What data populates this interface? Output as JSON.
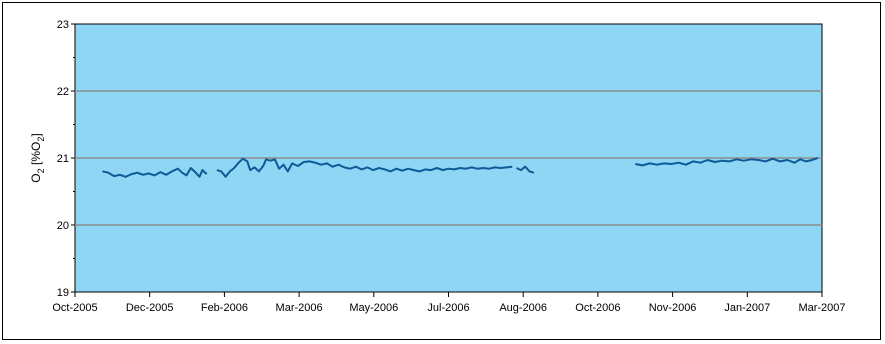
{
  "chart_data": {
    "type": "line",
    "title": "",
    "xlabel": "",
    "ylabel": {
      "main": "O",
      "sub1": "2",
      "mid": " [%O",
      "sub2": "2",
      "end": "]"
    },
    "ylim": [
      19,
      23
    ],
    "yticks": [
      "19",
      "20",
      "21",
      "22",
      "23"
    ],
    "xlim": [
      "2005-10-01",
      "2007-03-01"
    ],
    "xtick_labels": [
      "Oct-2005",
      "Dec-2005",
      "Feb-2006",
      "Mar-2006",
      "May-2006",
      "Jul-2006",
      "Aug-2006",
      "Oct-2006",
      "Nov-2006",
      "Jan-2007",
      "Mar-2007"
    ],
    "grid": true,
    "legend": "none",
    "plot_background": "#8fd6f4",
    "gridline_color": "#8c8c8c",
    "line_color": "#0d5a96",
    "series": [
      {
        "segments": [
          [
            [
              "2005-10-20",
              20.8
            ],
            [
              "2005-10-24",
              20.78
            ],
            [
              "2005-10-28",
              20.73
            ],
            [
              "2005-11-01",
              20.75
            ],
            [
              "2005-11-05",
              20.72
            ],
            [
              "2005-11-09",
              20.76
            ],
            [
              "2005-11-13",
              20.78
            ],
            [
              "2005-11-17",
              20.75
            ],
            [
              "2005-11-21",
              20.77
            ],
            [
              "2005-11-25",
              20.74
            ],
            [
              "2005-11-29",
              20.79
            ],
            [
              "2005-12-03",
              20.75
            ],
            [
              "2005-12-07",
              20.8
            ],
            [
              "2005-12-11",
              20.84
            ],
            [
              "2005-12-14",
              20.78
            ],
            [
              "2005-12-17",
              20.74
            ],
            [
              "2005-12-20",
              20.85
            ],
            [
              "2005-12-23",
              20.79
            ],
            [
              "2005-12-26",
              20.72
            ],
            [
              "2005-12-28",
              20.82
            ],
            [
              "2005-12-31",
              20.76
            ]
          ],
          [
            [
              "2006-01-07",
              20.82
            ],
            [
              "2006-01-10",
              20.8
            ],
            [
              "2006-01-13",
              20.72
            ],
            [
              "2006-01-16",
              20.8
            ],
            [
              "2006-01-19",
              20.85
            ],
            [
              "2006-01-22",
              20.93
            ],
            [
              "2006-01-25",
              20.99
            ],
            [
              "2006-01-28",
              20.95
            ],
            [
              "2006-01-30",
              20.82
            ],
            [
              "2006-02-02",
              20.86
            ],
            [
              "2006-02-05",
              20.8
            ],
            [
              "2006-02-08",
              20.88
            ],
            [
              "2006-02-10",
              20.98
            ],
            [
              "2006-02-13",
              20.96
            ],
            [
              "2006-02-16",
              20.98
            ],
            [
              "2006-02-19",
              20.84
            ],
            [
              "2006-02-22",
              20.9
            ],
            [
              "2006-02-25",
              20.8
            ],
            [
              "2006-02-28",
              20.92
            ],
            [
              "2006-03-04",
              20.88
            ],
            [
              "2006-03-08",
              20.94
            ],
            [
              "2006-03-12",
              20.95
            ],
            [
              "2006-03-16",
              20.93
            ],
            [
              "2006-03-20",
              20.9
            ],
            [
              "2006-03-24",
              20.92
            ],
            [
              "2006-03-28",
              20.87
            ],
            [
              "2006-04-01",
              20.9
            ],
            [
              "2006-04-05",
              20.86
            ],
            [
              "2006-04-09",
              20.84
            ],
            [
              "2006-04-13",
              20.87
            ],
            [
              "2006-04-17",
              20.83
            ],
            [
              "2006-04-21",
              20.86
            ],
            [
              "2006-04-25",
              20.82
            ],
            [
              "2006-04-29",
              20.85
            ],
            [
              "2006-05-03",
              20.83
            ],
            [
              "2006-05-07",
              20.8
            ],
            [
              "2006-05-11",
              20.84
            ],
            [
              "2006-05-15",
              20.81
            ],
            [
              "2006-05-19",
              20.84
            ],
            [
              "2006-05-23",
              20.82
            ],
            [
              "2006-05-27",
              20.8
            ],
            [
              "2006-05-31",
              20.83
            ],
            [
              "2006-06-04",
              20.82
            ],
            [
              "2006-06-08",
              20.85
            ],
            [
              "2006-06-12",
              20.82
            ],
            [
              "2006-06-16",
              20.84
            ],
            [
              "2006-06-20",
              20.83
            ],
            [
              "2006-06-24",
              20.85
            ],
            [
              "2006-06-28",
              20.84
            ],
            [
              "2006-07-02",
              20.86
            ],
            [
              "2006-07-06",
              20.84
            ],
            [
              "2006-07-10",
              20.85
            ],
            [
              "2006-07-14",
              20.84
            ],
            [
              "2006-07-18",
              20.86
            ],
            [
              "2006-07-22",
              20.85
            ],
            [
              "2006-07-26",
              20.86
            ],
            [
              "2006-07-30",
              20.87
            ]
          ],
          [
            [
              "2006-08-02",
              20.85
            ],
            [
              "2006-08-05",
              20.82
            ],
            [
              "2006-08-08",
              20.87
            ],
            [
              "2006-08-11",
              20.8
            ],
            [
              "2006-08-14",
              20.78
            ]
          ],
          [
            [
              "2006-10-23",
              20.91
            ],
            [
              "2006-10-28",
              20.89
            ],
            [
              "2006-11-02",
              20.92
            ],
            [
              "2006-11-07",
              20.9
            ],
            [
              "2006-11-12",
              20.92
            ],
            [
              "2006-11-17",
              20.91
            ],
            [
              "2006-11-22",
              20.93
            ],
            [
              "2006-11-27",
              20.9
            ],
            [
              "2006-12-02",
              20.95
            ],
            [
              "2006-12-07",
              20.93
            ],
            [
              "2006-12-12",
              20.97
            ],
            [
              "2006-12-17",
              20.94
            ],
            [
              "2006-12-22",
              20.96
            ],
            [
              "2006-12-27",
              20.95
            ],
            [
              "2007-01-01",
              20.98
            ],
            [
              "2007-01-06",
              20.96
            ],
            [
              "2007-01-11",
              20.98
            ],
            [
              "2007-01-16",
              20.97
            ],
            [
              "2007-01-21",
              20.95
            ],
            [
              "2007-01-26",
              20.99
            ],
            [
              "2007-01-31",
              20.95
            ],
            [
              "2007-02-05",
              20.97
            ],
            [
              "2007-02-10",
              20.93
            ],
            [
              "2007-02-14",
              20.98
            ],
            [
              "2007-02-18",
              20.95
            ],
            [
              "2007-02-22",
              20.97
            ],
            [
              "2007-02-26",
              21.0
            ]
          ]
        ]
      }
    ]
  }
}
